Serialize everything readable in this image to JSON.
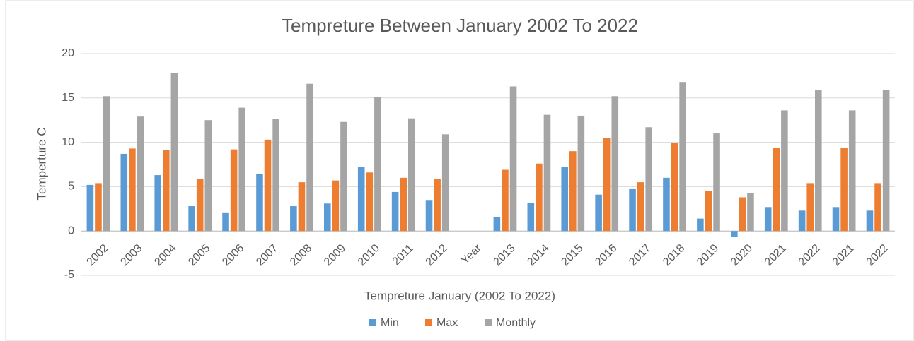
{
  "chart_data": {
    "type": "bar",
    "title": "Tempreture Between January 2002 To 2022",
    "x_label": "Tempreture January (2002 To 2022)",
    "y_label": "Temperture C",
    "categories": [
      "2002",
      "2003",
      "2004",
      "2005",
      "2006",
      "2007",
      "2008",
      "2009",
      "2010",
      "2011",
      "2012",
      "Year",
      "2013",
      "2014",
      "2015",
      "2016",
      "2017",
      "2018",
      "2019",
      "2020",
      "2021",
      "2022",
      "2021",
      "2022"
    ],
    "series": [
      {
        "name": "Min",
        "color": "#5b9bd5",
        "values": [
          5.2,
          8.7,
          6.3,
          2.8,
          2.1,
          6.4,
          2.8,
          3.1,
          7.2,
          4.4,
          3.5,
          null,
          1.6,
          3.2,
          7.2,
          4.1,
          4.8,
          6.0,
          1.4,
          -0.7,
          2.7,
          2.3,
          2.7,
          2.3
        ]
      },
      {
        "name": "Max",
        "color": "#ed7d31",
        "values": [
          5.4,
          9.3,
          9.1,
          5.9,
          9.2,
          10.3,
          5.5,
          5.7,
          6.6,
          6.0,
          5.9,
          null,
          6.9,
          7.6,
          9.0,
          10.5,
          5.5,
          9.9,
          4.5,
          3.8,
          9.4,
          5.4,
          9.4,
          5.4
        ]
      },
      {
        "name": "Monthly",
        "color": "#a5a5a5",
        "values": [
          15.2,
          12.9,
          17.8,
          12.5,
          13.9,
          12.6,
          16.6,
          12.3,
          15.1,
          12.7,
          10.9,
          null,
          16.3,
          13.1,
          13.0,
          15.2,
          11.7,
          16.8,
          11.0,
          4.3,
          13.6,
          15.9,
          13.6,
          15.9
        ]
      }
    ],
    "ylim": [
      -5,
      20
    ],
    "yticks": [
      -5,
      0,
      5,
      10,
      15,
      20
    ],
    "grid": true,
    "legend": "bottom"
  }
}
